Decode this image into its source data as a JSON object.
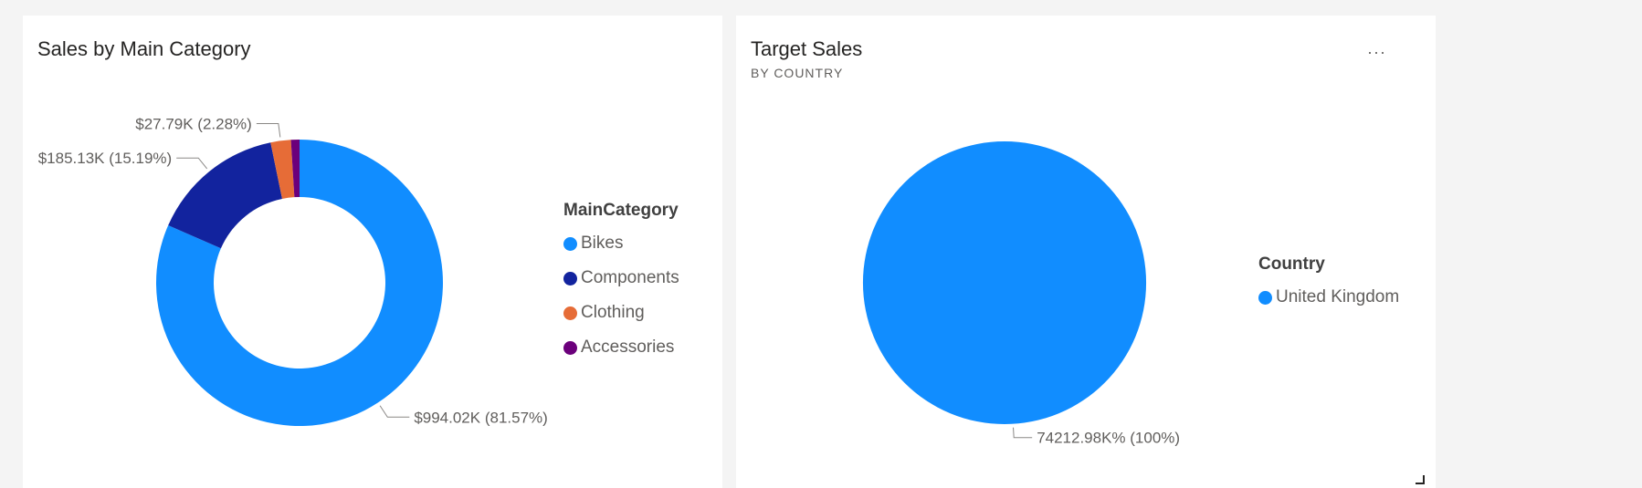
{
  "charts": {
    "left": {
      "title": "Sales by Main Category",
      "legend_title": "MainCategory"
    },
    "right": {
      "title": "Target Sales",
      "subtitle": "BY COUNTRY",
      "legend_title": "Country",
      "more_label": "···"
    }
  },
  "chart_data": [
    {
      "type": "pie",
      "variant": "donut",
      "title": "Sales by Main Category",
      "legend_title": "MainCategory",
      "legend_position": "right",
      "slices": [
        {
          "label": "Bikes",
          "value": 994020,
          "percent": 81.57,
          "data_label": "$994.02K (81.57%)",
          "color": "#118DFF"
        },
        {
          "label": "Components",
          "value": 185130,
          "percent": 15.19,
          "data_label": "$185.13K (15.19%)",
          "color": "#12239E"
        },
        {
          "label": "Clothing",
          "value": 27790,
          "percent": 2.28,
          "data_label": "$27.79K (2.28%)",
          "color": "#E66C37"
        },
        {
          "label": "Accessories",
          "value": 11700,
          "percent": 0.96,
          "data_label": "",
          "color": "#6B007B"
        }
      ]
    },
    {
      "type": "pie",
      "title": "Target Sales",
      "subtitle": "BY COUNTRY",
      "legend_title": "Country",
      "legend_position": "right",
      "slices": [
        {
          "label": "United Kingdom",
          "value": 74212980,
          "percent": 100,
          "data_label": "74212.98K% (100%)",
          "color": "#118DFF"
        }
      ]
    }
  ]
}
